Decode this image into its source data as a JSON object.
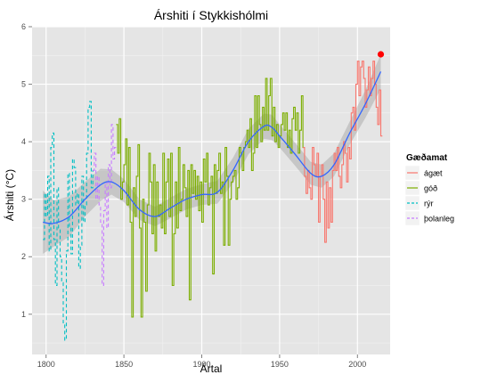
{
  "chart_data": {
    "type": "line",
    "title": "Árshiti í Stykkishólmi",
    "xlabel": "Ártal",
    "ylabel": "Árshiti (°C)",
    "xlim": [
      1791,
      2021
    ],
    "ylim": [
      0.3,
      6.0
    ],
    "x_ticks": [
      1800,
      1850,
      1900,
      1950,
      2000
    ],
    "y_ticks": [
      1,
      2,
      3,
      4,
      5,
      6
    ],
    "grid": true,
    "legend": {
      "title": "Gæðamat",
      "position": "right",
      "entries": [
        {
          "label": "ágæt",
          "color": "#f8766d",
          "dash": "solid"
        },
        {
          "label": "góð",
          "color": "#7cae00",
          "dash": "solid"
        },
        {
          "label": "rýr",
          "color": "#00bfc4",
          "dash": "dashed"
        },
        {
          "label": "þolanleg",
          "color": "#c77cff",
          "dash": "dashed"
        }
      ]
    },
    "series": [
      {
        "name": "rýr",
        "color": "#00bfc4",
        "dash": "dashed",
        "x": [
          1798,
          1799,
          1800,
          1801,
          1802,
          1803,
          1804,
          1805,
          1806,
          1807,
          1808,
          1809,
          1810,
          1811,
          1812,
          1813,
          1814,
          1815,
          1816,
          1817,
          1818,
          1819,
          1820,
          1821,
          1822,
          1823,
          1824,
          1825,
          1826,
          1827,
          1828,
          1829,
          1830
        ],
        "y": [
          2.3,
          3.1,
          2.7,
          3.4,
          2.1,
          3.9,
          4.15,
          2.3,
          1.5,
          3.2,
          2.5,
          2.0,
          1.55,
          0.85,
          0.55,
          2.1,
          3.45,
          2.5,
          2.05,
          3.7,
          3.55,
          2.9,
          3.1,
          1.8,
          2.2,
          3.4,
          2.6,
          2.9,
          3.8,
          4.6,
          4.7,
          3.2,
          3.5
        ]
      },
      {
        "name": "þolanleg",
        "color": "#c77cff",
        "dash": "dashed",
        "x": [
          1830,
          1831,
          1832,
          1833,
          1834,
          1835,
          1836,
          1837,
          1838,
          1839,
          1840,
          1841,
          1842,
          1843,
          1844
        ],
        "y": [
          3.5,
          3.8,
          3.0,
          3.4,
          2.9,
          2.6,
          1.5,
          2.8,
          3.3,
          2.5,
          3.6,
          3.2,
          4.3,
          3.7,
          3.9
        ]
      },
      {
        "name": "góð",
        "color": "#7cae00",
        "dash": "solid",
        "x": [
          1845,
          1846,
          1847,
          1848,
          1849,
          1850,
          1851,
          1852,
          1853,
          1854,
          1855,
          1856,
          1857,
          1858,
          1859,
          1860,
          1861,
          1862,
          1863,
          1864,
          1865,
          1866,
          1867,
          1868,
          1869,
          1870,
          1871,
          1872,
          1873,
          1874,
          1875,
          1876,
          1877,
          1878,
          1879,
          1880,
          1881,
          1882,
          1883,
          1884,
          1885,
          1886,
          1887,
          1888,
          1889,
          1890,
          1891,
          1892,
          1893,
          1894,
          1895,
          1896,
          1897,
          1898,
          1899,
          1900,
          1901,
          1902,
          1903,
          1904,
          1905,
          1906,
          1907,
          1908,
          1909,
          1910,
          1911,
          1912,
          1913,
          1914,
          1915,
          1916,
          1917,
          1918,
          1919,
          1920,
          1921,
          1922,
          1923,
          1924,
          1925,
          1926,
          1927,
          1928,
          1929,
          1930,
          1931,
          1932,
          1933,
          1934,
          1935,
          1936,
          1937,
          1938,
          1939,
          1940,
          1941,
          1942,
          1943,
          1944,
          1945,
          1946,
          1947,
          1948,
          1949,
          1950,
          1951,
          1952,
          1953,
          1954,
          1955,
          1956,
          1957,
          1958,
          1959,
          1960,
          1961,
          1962,
          1963,
          1964,
          1965
        ],
        "y": [
          4.3,
          3.8,
          4.4,
          3.0,
          3.3,
          3.6,
          4.05,
          2.9,
          3.9,
          2.6,
          0.95,
          3.2,
          2.7,
          3.4,
          3.95,
          2.5,
          0.95,
          3.0,
          2.6,
          1.4,
          2.9,
          3.8,
          3.3,
          2.4,
          3.6,
          2.1,
          3.3,
          2.7,
          2.9,
          2.5,
          3.8,
          2.4,
          3.3,
          3.7,
          2.7,
          3.8,
          1.5,
          2.4,
          3.3,
          2.5,
          3.9,
          2.8,
          3.0,
          3.6,
          3.2,
          2.7,
          3.5,
          1.25,
          3.6,
          3.1,
          3.5,
          3.0,
          3.4,
          2.8,
          3.3,
          2.6,
          3.7,
          3.3,
          3.8,
          2.9,
          3.2,
          3.4,
          1.7,
          3.6,
          3.1,
          3.5,
          3.8,
          3.1,
          3.3,
          2.2,
          3.9,
          3.4,
          2.2,
          3.0,
          3.3,
          3.4,
          3.5,
          3.0,
          3.2,
          3.9,
          3.8,
          3.5,
          3.9,
          4.0,
          4.2,
          3.9,
          4.4,
          3.5,
          3.8,
          4.8,
          3.9,
          4.8,
          4.3,
          4.0,
          4.6,
          4.2,
          5.1,
          4.2,
          4.8,
          5.1,
          4.1,
          4.6,
          4.0,
          4.3,
          3.9,
          4.1,
          4.3,
          4.5,
          4.2,
          4.5,
          3.9,
          4.2,
          3.8,
          4.4,
          4.6,
          4.2,
          4.5,
          3.8,
          4.2,
          4.8,
          3.9
        ]
      },
      {
        "name": "ágæt",
        "color": "#f8766d",
        "dash": "solid",
        "x": [
          1965,
          1966,
          1967,
          1968,
          1969,
          1970,
          1971,
          1972,
          1973,
          1974,
          1975,
          1976,
          1977,
          1978,
          1979,
          1980,
          1981,
          1982,
          1983,
          1984,
          1985,
          1986,
          1987,
          1988,
          1989,
          1990,
          1991,
          1992,
          1993,
          1994,
          1995,
          1996,
          1997,
          1998,
          1999,
          2000,
          2001,
          2002,
          2003,
          2004,
          2005,
          2006,
          2007,
          2008,
          2009,
          2010,
          2011,
          2012,
          2013,
          2014,
          2015
        ],
        "y": [
          3.9,
          3.4,
          3.1,
          3.5,
          3.2,
          3.0,
          3.9,
          3.6,
          3.4,
          3.8,
          2.6,
          3.4,
          3.6,
          3.0,
          2.25,
          3.3,
          2.5,
          3.2,
          2.6,
          3.5,
          3.8,
          3.5,
          3.9,
          3.4,
          3.2,
          3.6,
          4.0,
          3.8,
          3.3,
          3.9,
          3.7,
          4.5,
          4.6,
          4.2,
          5.0,
          5.4,
          4.8,
          5.3,
          5.4,
          5.1,
          4.6,
          4.9,
          5.3,
          4.8,
          5.1,
          5.4,
          5.0,
          4.6,
          4.3,
          4.9,
          4.1
        ]
      },
      {
        "name": "smooth",
        "color": "#3366ff",
        "dash": "solid",
        "type": "smooth",
        "x": [
          1798,
          1805,
          1815,
          1825,
          1835,
          1842,
          1850,
          1860,
          1870,
          1880,
          1890,
          1900,
          1910,
          1920,
          1930,
          1940,
          1945,
          1950,
          1960,
          1970,
          1977,
          1985,
          1995,
          2005,
          2015
        ],
        "y": [
          2.6,
          2.58,
          2.7,
          3.0,
          3.25,
          3.3,
          3.15,
          2.82,
          2.7,
          2.85,
          3.0,
          3.08,
          3.12,
          3.5,
          4.0,
          4.27,
          4.25,
          4.1,
          3.78,
          3.45,
          3.4,
          3.6,
          4.15,
          4.65,
          5.22
        ],
        "band": [
          0.55,
          0.4,
          0.35,
          0.3,
          0.28,
          0.22,
          0.2,
          0.18,
          0.17,
          0.18,
          0.18,
          0.18,
          0.2,
          0.22,
          0.22,
          0.22,
          0.22,
          0.2,
          0.2,
          0.2,
          0.2,
          0.2,
          0.2,
          0.24,
          0.3
        ]
      }
    ],
    "highlight_point": {
      "x": 2015,
      "y": 5.52,
      "color": "#ff0000"
    }
  }
}
